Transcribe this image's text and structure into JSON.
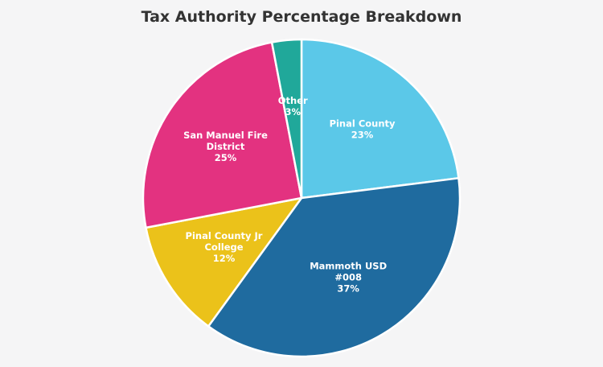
{
  "chart_data": {
    "type": "pie",
    "title": "Tax Authority Percentage Breakdown",
    "start_angle_deg": 0,
    "direction": "clockwise",
    "slices": [
      {
        "label_lines": [
          "Pinal County"
        ],
        "value": 23,
        "value_label": "23%",
        "color": "#5bc8e8"
      },
      {
        "label_lines": [
          "Mammoth USD",
          "#008"
        ],
        "value": 37,
        "value_label": "37%",
        "color": "#1f6b9f"
      },
      {
        "label_lines": [
          "Pinal County Jr",
          "College"
        ],
        "value": 12,
        "value_label": "12%",
        "color": "#ebc21a"
      },
      {
        "label_lines": [
          "San Manuel Fire",
          "District"
        ],
        "value": 25,
        "value_label": "25%",
        "color": "#e33280"
      },
      {
        "label_lines": [
          "Other"
        ],
        "value": 3,
        "value_label": "3%",
        "color": "#20a89a"
      }
    ]
  }
}
